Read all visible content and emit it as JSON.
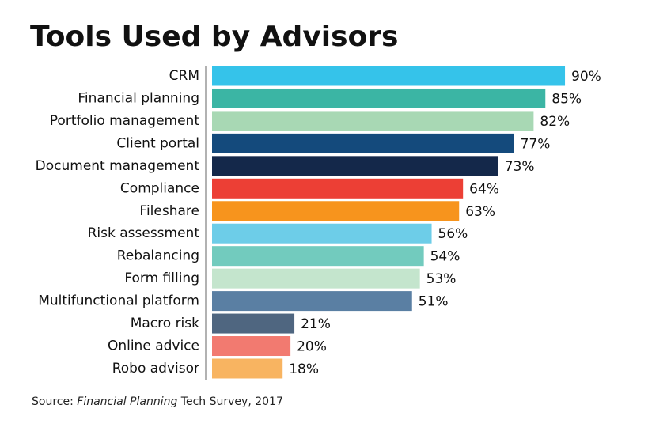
{
  "chart_data": {
    "type": "bar",
    "orientation": "horizontal",
    "title": "Tools Used by Advisors",
    "categories": [
      "CRM",
      "Financial planning",
      "Portfolio management",
      "Client portal",
      "Document management",
      "Compliance",
      "Fileshare",
      "Risk assessment",
      "Rebalancing",
      "Form filling",
      "Multifunctional platform",
      "Macro risk",
      "Online advice",
      "Robo advisor"
    ],
    "values": [
      90,
      85,
      82,
      77,
      73,
      64,
      63,
      56,
      54,
      53,
      51,
      21,
      20,
      18
    ],
    "value_labels": [
      "90%",
      "85%",
      "82%",
      "77%",
      "73%",
      "64%",
      "63%",
      "56%",
      "54%",
      "53%",
      "51%",
      "21%",
      "20%",
      "18%"
    ],
    "colors": [
      "#35c3ea",
      "#3bb5a4",
      "#a8d8b4",
      "#144a7c",
      "#14284a",
      "#ec3f35",
      "#f7941d",
      "#6dcde8",
      "#72cbbe",
      "#c4e5cd",
      "#5a7fa3",
      "#4f6680",
      "#f27a70",
      "#f8b461"
    ],
    "source": [
      "Source: ",
      "Financial Planning",
      " Tech Survey, 2017"
    ]
  }
}
